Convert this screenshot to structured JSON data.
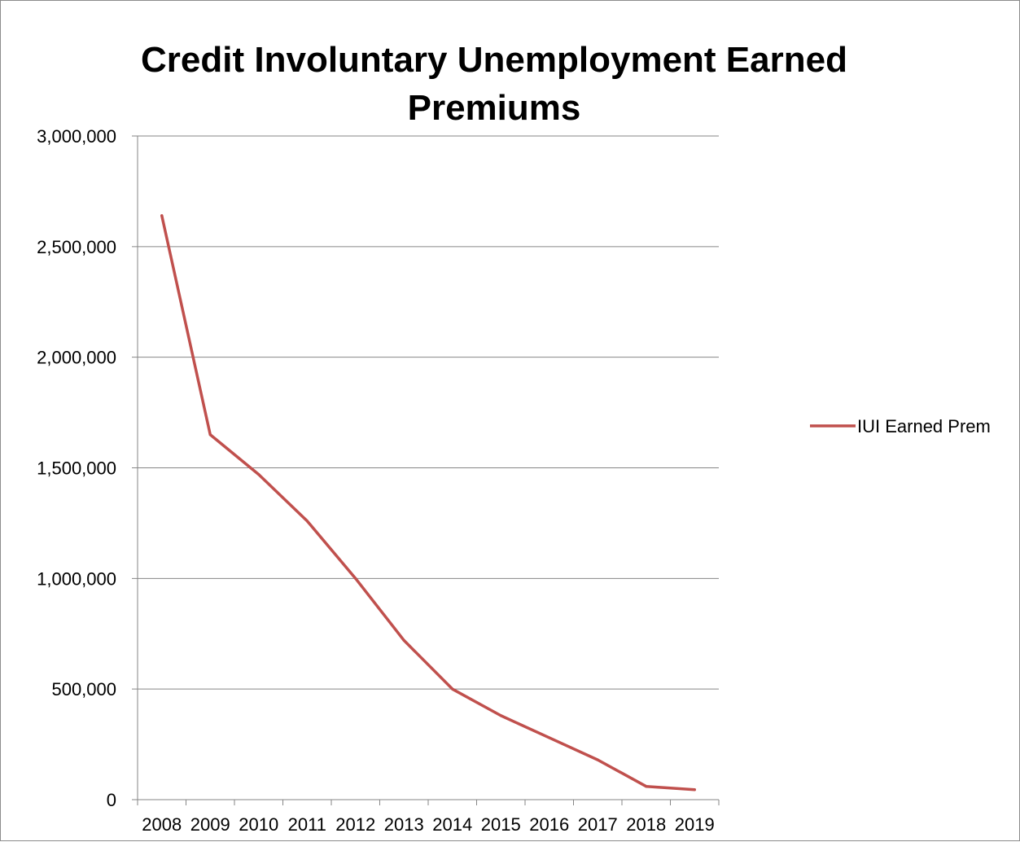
{
  "chart_data": {
    "type": "line",
    "title_lines": [
      "Credit Involuntary Unemployment Earned",
      "Premiums"
    ],
    "xlabel": "",
    "ylabel": "",
    "categories": [
      "2008",
      "2009",
      "2010",
      "2011",
      "2012",
      "2013",
      "2014",
      "2015",
      "2016",
      "2017",
      "2018",
      "2019"
    ],
    "series": [
      {
        "name": "IUI Earned Prem",
        "color": "#c0504d",
        "values": [
          2640000,
          1650000,
          1470000,
          1260000,
          1000000,
          720000,
          500000,
          380000,
          280000,
          180000,
          60000,
          45000
        ]
      }
    ],
    "ylim": [
      0,
      3000000
    ],
    "yticks": [
      0,
      500000,
      1000000,
      1500000,
      2000000,
      2500000,
      3000000
    ],
    "ytick_labels": [
      "0",
      "500,000",
      "1,000,000",
      "1,500,000",
      "2,000,000",
      "2,500,000",
      "3,000,000"
    ],
    "grid": true,
    "legend_position": "right",
    "colors": {
      "gridline": "#868686",
      "axis": "#868686",
      "text": "#000000"
    }
  }
}
